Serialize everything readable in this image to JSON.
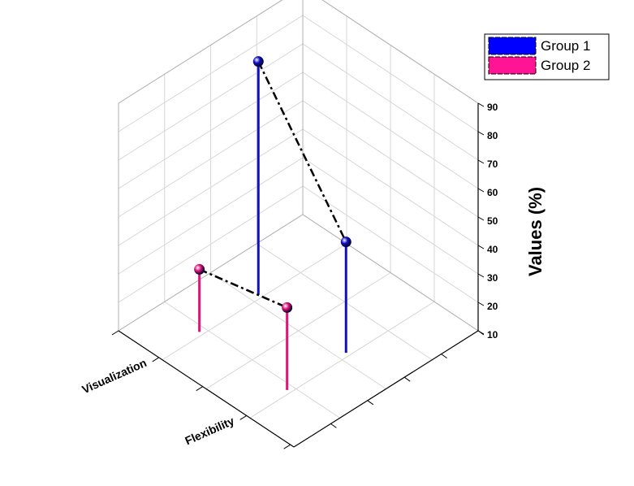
{
  "chart_data": {
    "type": "3d-stem",
    "zlabel": "Values (%)",
    "zlim": [
      10,
      90
    ],
    "z_ticks": [
      10,
      20,
      30,
      40,
      50,
      60,
      70,
      80,
      90
    ],
    "categories": [
      "Visualization",
      "Flexibility"
    ],
    "legend_position": "top-right",
    "series": [
      {
        "name": "Group 1",
        "color": "#1010c0",
        "legend_color": "#0000ff",
        "values": [
          92,
          49
        ]
      },
      {
        "name": "Group 2",
        "color": "#e0157a",
        "legend_color": "#ff1493",
        "values": [
          32,
          39
        ]
      }
    ],
    "grid": true
  }
}
